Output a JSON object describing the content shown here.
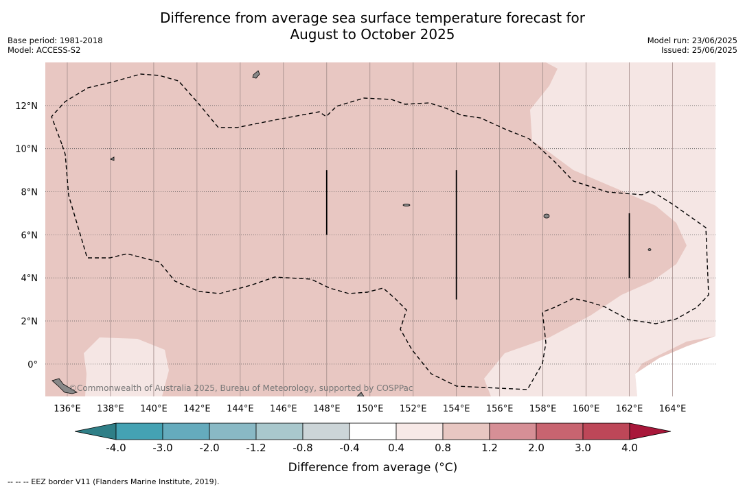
{
  "title": {
    "line1": "Difference from average sea surface temperature forecast for",
    "line2": "August to October 2025"
  },
  "meta_left": [
    "Base period: 1981-2018",
    "Model: ACCESS-S2"
  ],
  "meta_right": [
    "Model run: 23/06/2025",
    "Issued: 25/06/2025"
  ],
  "map": {
    "lon_range": [
      135,
      166
    ],
    "lat_range": [
      -1.5,
      14
    ],
    "lon_ticks": [
      {
        "v": 136,
        "label": "136°E"
      },
      {
        "v": 138,
        "label": "138°E"
      },
      {
        "v": 140,
        "label": "140°E"
      },
      {
        "v": 142,
        "label": "142°E"
      },
      {
        "v": 144,
        "label": "144°E"
      },
      {
        "v": 146,
        "label": "146°E"
      },
      {
        "v": 148,
        "label": "148°E"
      },
      {
        "v": 150,
        "label": "150°E"
      },
      {
        "v": 152,
        "label": "152°E"
      },
      {
        "v": 154,
        "label": "154°E"
      },
      {
        "v": 156,
        "label": "156°E"
      },
      {
        "v": 158,
        "label": "158°E"
      },
      {
        "v": 160,
        "label": "160°E"
      },
      {
        "v": 162,
        "label": "162°E"
      },
      {
        "v": 164,
        "label": "164°E"
      }
    ],
    "lat_ticks": [
      {
        "v": 12,
        "label": "12°N"
      },
      {
        "v": 10,
        "label": "10°N"
      },
      {
        "v": 8,
        "label": "8°N"
      },
      {
        "v": 6,
        "label": "6°N"
      },
      {
        "v": 4,
        "label": "4°N"
      },
      {
        "v": 2,
        "label": "2°N"
      },
      {
        "v": 0,
        "label": "0°"
      }
    ],
    "colors": {
      "base_anomaly": "#e8c7c2",
      "light_anomaly": "#f5e6e4",
      "neutral": "#ffffff",
      "eez": "#000000",
      "land": "#888888"
    },
    "eez_segments": [
      {
        "lon": 148,
        "lat0": 6,
        "lat1": 9
      },
      {
        "lon": 154,
        "lat0": 3,
        "lat1": 9
      },
      {
        "lon": 162,
        "lat0": 4,
        "lat1": 7
      }
    ],
    "copyright": "©Commonwealth of Australia 2025, Bureau of Meteorology, supported by COSPPac"
  },
  "colorbar": {
    "label": "Difference from average (°C)",
    "tick_labels": [
      "-4.0",
      "-3.0",
      "-2.0",
      "-1.2",
      "-0.8",
      "-0.4",
      "0.4",
      "0.8",
      "1.2",
      "2.0",
      "3.0",
      "4.0"
    ],
    "low_extend": "#2f7f87",
    "high_extend": "#a8173a",
    "bins": [
      "#44a2b3",
      "#65abbd",
      "#89b9c5",
      "#a9c8cd",
      "#ccd5d8",
      "#ffffff",
      "#f7e9e7",
      "#e8c7c2",
      "#d68f96",
      "#c86470",
      "#bd4758"
    ]
  },
  "footnote": "-- -- -- EEZ border V11 (Flanders Marine Institute, 2019)."
}
